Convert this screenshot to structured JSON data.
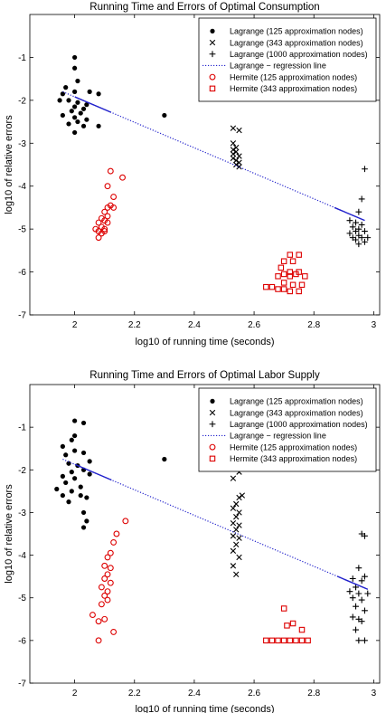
{
  "chart_data": [
    {
      "type": "scatter",
      "title": "Running Time and Errors of Optimal Consumption",
      "xlabel": "log10 of running time (seconds)",
      "ylabel": "log10 of relative errors",
      "xlim": [
        1.85,
        3.02
      ],
      "ylim": [
        -7,
        0
      ],
      "xticks": [
        "2",
        "2.2",
        "2.4",
        "2.6",
        "2.8",
        "3"
      ],
      "yticks": [
        "-1",
        "-2",
        "-3",
        "-4",
        "-5",
        "-6",
        "-7"
      ],
      "xtick_values": [
        2.0,
        2.2,
        2.4,
        2.6,
        2.8,
        3.0
      ],
      "ytick_values": [
        -1,
        -2,
        -3,
        -4,
        -5,
        -6,
        -7
      ],
      "legend_position": "top-right",
      "series": [
        {
          "name": "Lagrange (125 approximation nodes)",
          "marker": "dot",
          "color": "#000000",
          "points": [
            [
              2.0,
              -1.0
            ],
            [
              2.0,
              -1.25
            ],
            [
              2.01,
              -1.55
            ],
            [
              1.97,
              -1.7
            ],
            [
              2.0,
              -1.8
            ],
            [
              1.96,
              -1.85
            ],
            [
              2.05,
              -1.8
            ],
            [
              2.08,
              -1.85
            ],
            [
              1.95,
              -2.0
            ],
            [
              1.98,
              -2.0
            ],
            [
              2.01,
              -2.05
            ],
            [
              2.04,
              -2.1
            ],
            [
              2.0,
              -2.15
            ],
            [
              2.03,
              -2.2
            ],
            [
              1.99,
              -2.25
            ],
            [
              2.02,
              -2.3
            ],
            [
              1.96,
              -2.35
            ],
            [
              2.0,
              -2.4
            ],
            [
              2.04,
              -2.45
            ],
            [
              2.01,
              -2.5
            ],
            [
              1.98,
              -2.55
            ],
            [
              2.08,
              -2.6
            ],
            [
              2.0,
              -2.75
            ],
            [
              2.03,
              -2.6
            ],
            [
              2.3,
              -2.35
            ]
          ]
        },
        {
          "name": "Lagrange (343 approximation nodes)",
          "marker": "x",
          "color": "#000000",
          "points": [
            [
              2.54,
              -1.95
            ],
            [
              2.53,
              -2.65
            ],
            [
              2.55,
              -2.7
            ],
            [
              2.53,
              -3.0
            ],
            [
              2.54,
              -3.1
            ],
            [
              2.54,
              -3.2
            ],
            [
              2.53,
              -3.25
            ],
            [
              2.55,
              -3.3
            ],
            [
              2.53,
              -3.35
            ],
            [
              2.54,
              -3.4
            ],
            [
              2.55,
              -3.45
            ],
            [
              2.54,
              -3.5
            ],
            [
              2.55,
              -3.55
            ],
            [
              2.53,
              -3.15
            ]
          ]
        },
        {
          "name": "Lagrange (1000 approximation nodes)",
          "marker": "plus",
          "color": "#000000",
          "points": [
            [
              2.97,
              -3.6
            ],
            [
              2.96,
              -4.3
            ],
            [
              2.95,
              -4.6
            ],
            [
              2.92,
              -4.8
            ],
            [
              2.94,
              -4.85
            ],
            [
              2.96,
              -4.9
            ],
            [
              2.93,
              -4.95
            ],
            [
              2.95,
              -5.0
            ],
            [
              2.94,
              -5.05
            ],
            [
              2.97,
              -5.05
            ],
            [
              2.92,
              -5.1
            ],
            [
              2.95,
              -5.15
            ],
            [
              2.96,
              -5.2
            ],
            [
              2.94,
              -5.25
            ],
            [
              2.97,
              -5.3
            ],
            [
              2.93,
              -5.2
            ],
            [
              2.98,
              -5.2
            ],
            [
              2.95,
              -5.35
            ]
          ]
        },
        {
          "name": "Lagrange − regression line",
          "marker": "dotted-line",
          "color": "#2222cc",
          "line": [
            [
              1.96,
              -1.8
            ],
            [
              2.97,
              -4.8
            ]
          ]
        },
        {
          "name": "Hermite (125 approximation nodes)",
          "marker": "circle",
          "color": "#dd0000",
          "points": [
            [
              2.12,
              -3.65
            ],
            [
              2.16,
              -3.8
            ],
            [
              2.11,
              -4.0
            ],
            [
              2.13,
              -4.25
            ],
            [
              2.12,
              -4.45
            ],
            [
              2.11,
              -4.5
            ],
            [
              2.13,
              -4.5
            ],
            [
              2.1,
              -4.6
            ],
            [
              2.11,
              -4.7
            ],
            [
              2.09,
              -4.75
            ],
            [
              2.1,
              -4.8
            ],
            [
              2.11,
              -4.85
            ],
            [
              2.08,
              -4.85
            ],
            [
              2.09,
              -4.95
            ],
            [
              2.07,
              -5.0
            ],
            [
              2.08,
              -5.05
            ],
            [
              2.1,
              -5.0
            ],
            [
              2.09,
              -5.1
            ],
            [
              2.08,
              -5.2
            ],
            [
              2.1,
              -5.05
            ]
          ]
        },
        {
          "name": "Hermite (343 approximation nodes)",
          "marker": "square",
          "color": "#dd0000",
          "points": [
            [
              2.72,
              -5.6
            ],
            [
              2.75,
              -5.6
            ],
            [
              2.7,
              -5.75
            ],
            [
              2.73,
              -5.75
            ],
            [
              2.69,
              -5.9
            ],
            [
              2.72,
              -6.0
            ],
            [
              2.75,
              -6.0
            ],
            [
              2.7,
              -6.05
            ],
            [
              2.74,
              -6.05
            ],
            [
              2.68,
              -6.1
            ],
            [
              2.72,
              -6.1
            ],
            [
              2.77,
              -6.1
            ],
            [
              2.7,
              -6.25
            ],
            [
              2.73,
              -6.3
            ],
            [
              2.76,
              -6.3
            ],
            [
              2.64,
              -6.35
            ],
            [
              2.66,
              -6.35
            ],
            [
              2.68,
              -6.4
            ],
            [
              2.7,
              -6.4
            ],
            [
              2.72,
              -6.45
            ],
            [
              2.75,
              -6.45
            ]
          ]
        }
      ]
    },
    {
      "type": "scatter",
      "title": "Running Time and Errors of Optimal Labor Supply",
      "xlabel": "log10 of running time (seconds)",
      "ylabel": "log10 of relative errors",
      "xlim": [
        1.85,
        3.02
      ],
      "ylim": [
        -7,
        0
      ],
      "xticks": [
        "2",
        "2.2",
        "2.4",
        "2.6",
        "2.8",
        "3"
      ],
      "yticks": [
        "-1",
        "-2",
        "-3",
        "-4",
        "-5",
        "-6",
        "-7"
      ],
      "xtick_values": [
        2.0,
        2.2,
        2.4,
        2.6,
        2.8,
        3.0
      ],
      "ytick_values": [
        -1,
        -2,
        -3,
        -4,
        -5,
        -6,
        -7
      ],
      "legend_position": "top-right",
      "series": [
        {
          "name": "Lagrange (125 approximation nodes)",
          "marker": "dot",
          "color": "#000000",
          "points": [
            [
              2.0,
              -0.85
            ],
            [
              2.03,
              -0.9
            ],
            [
              2.0,
              -1.2
            ],
            [
              1.99,
              -1.3
            ],
            [
              1.96,
              -1.45
            ],
            [
              2.0,
              -1.55
            ],
            [
              2.03,
              -1.6
            ],
            [
              1.97,
              -1.65
            ],
            [
              2.05,
              -1.8
            ],
            [
              1.98,
              -1.85
            ],
            [
              2.01,
              -1.9
            ],
            [
              2.03,
              -2.0
            ],
            [
              1.99,
              -2.05
            ],
            [
              2.05,
              -2.1
            ],
            [
              1.96,
              -2.15
            ],
            [
              2.0,
              -2.2
            ],
            [
              1.97,
              -2.3
            ],
            [
              2.02,
              -2.4
            ],
            [
              1.94,
              -2.45
            ],
            [
              1.99,
              -2.5
            ],
            [
              1.96,
              -2.6
            ],
            [
              2.02,
              -2.6
            ],
            [
              2.04,
              -2.65
            ],
            [
              1.98,
              -2.75
            ],
            [
              2.03,
              -3.0
            ],
            [
              2.04,
              -3.2
            ],
            [
              2.03,
              -3.35
            ],
            [
              2.3,
              -1.75
            ]
          ]
        },
        {
          "name": "Lagrange (343 approximation nodes)",
          "marker": "x",
          "color": "#000000",
          "points": [
            [
              2.54,
              -1.95
            ],
            [
              2.55,
              -2.05
            ],
            [
              2.53,
              -2.2
            ],
            [
              2.56,
              -2.6
            ],
            [
              2.55,
              -2.65
            ],
            [
              2.54,
              -2.8
            ],
            [
              2.53,
              -2.9
            ],
            [
              2.55,
              -3.0
            ],
            [
              2.54,
              -3.1
            ],
            [
              2.53,
              -3.25
            ],
            [
              2.55,
              -3.3
            ],
            [
              2.54,
              -3.4
            ],
            [
              2.53,
              -3.55
            ],
            [
              2.55,
              -3.6
            ],
            [
              2.54,
              -3.75
            ],
            [
              2.53,
              -3.9
            ],
            [
              2.55,
              -4.05
            ],
            [
              2.53,
              -4.25
            ],
            [
              2.54,
              -4.45
            ]
          ]
        },
        {
          "name": "Lagrange (1000 approximation nodes)",
          "marker": "plus",
          "color": "#000000",
          "points": [
            [
              2.96,
              -3.5
            ],
            [
              2.97,
              -3.55
            ],
            [
              2.95,
              -4.3
            ],
            [
              2.97,
              -4.5
            ],
            [
              2.93,
              -4.55
            ],
            [
              2.96,
              -4.6
            ],
            [
              2.94,
              -4.75
            ],
            [
              2.92,
              -4.85
            ],
            [
              2.95,
              -4.9
            ],
            [
              2.98,
              -4.9
            ],
            [
              2.93,
              -5.0
            ],
            [
              2.96,
              -5.05
            ],
            [
              2.94,
              -5.2
            ],
            [
              2.97,
              -5.3
            ],
            [
              2.93,
              -5.45
            ],
            [
              2.95,
              -5.5
            ],
            [
              2.96,
              -5.55
            ],
            [
              2.94,
              -5.75
            ],
            [
              2.95,
              -6.0
            ],
            [
              2.97,
              -6.0
            ]
          ]
        },
        {
          "name": "Lagrange − regression line",
          "marker": "dotted-line",
          "color": "#2222cc",
          "line": [
            [
              1.96,
              -1.75
            ],
            [
              2.98,
              -4.8
            ]
          ]
        },
        {
          "name": "Hermite (125 approximation nodes)",
          "marker": "circle",
          "color": "#dd0000",
          "points": [
            [
              2.17,
              -3.2
            ],
            [
              2.14,
              -3.5
            ],
            [
              2.13,
              -3.7
            ],
            [
              2.12,
              -3.95
            ],
            [
              2.11,
              -4.05
            ],
            [
              2.1,
              -4.25
            ],
            [
              2.12,
              -4.3
            ],
            [
              2.11,
              -4.45
            ],
            [
              2.1,
              -4.55
            ],
            [
              2.12,
              -4.65
            ],
            [
              2.09,
              -4.75
            ],
            [
              2.11,
              -4.85
            ],
            [
              2.1,
              -4.95
            ],
            [
              2.11,
              -5.05
            ],
            [
              2.09,
              -5.15
            ],
            [
              2.06,
              -5.4
            ],
            [
              2.1,
              -5.5
            ],
            [
              2.08,
              -5.55
            ],
            [
              2.13,
              -5.8
            ],
            [
              2.08,
              -6.0
            ]
          ]
        },
        {
          "name": "Hermite (343 approximation nodes)",
          "marker": "square",
          "color": "#dd0000",
          "points": [
            [
              2.7,
              -5.25
            ],
            [
              2.73,
              -5.6
            ],
            [
              2.71,
              -5.65
            ],
            [
              2.76,
              -5.75
            ],
            [
              2.64,
              -6.0
            ],
            [
              2.66,
              -6.0
            ],
            [
              2.68,
              -6.0
            ],
            [
              2.7,
              -6.0
            ],
            [
              2.72,
              -6.0
            ],
            [
              2.74,
              -6.0
            ],
            [
              2.76,
              -6.0
            ],
            [
              2.78,
              -6.0
            ]
          ]
        }
      ]
    }
  ]
}
